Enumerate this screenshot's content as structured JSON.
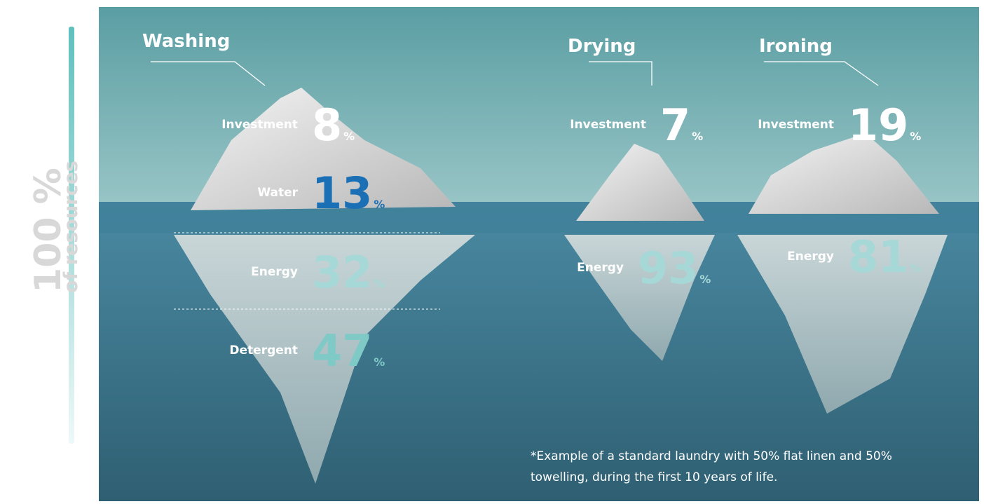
{
  "side_label": {
    "value": "100 %",
    "text": "of resources"
  },
  "groups": [
    {
      "title": "Washing",
      "items": [
        {
          "label": "Investment",
          "value": 8,
          "unit": "%"
        },
        {
          "label": "Water",
          "value": 13,
          "unit": "%"
        },
        {
          "label": "Energy",
          "value": 32,
          "unit": "%"
        },
        {
          "label": "Detergent",
          "value": 47,
          "unit": "%"
        }
      ]
    },
    {
      "title": "Drying",
      "items": [
        {
          "label": "Investment",
          "value": 7,
          "unit": "%"
        },
        {
          "label": "Energy",
          "value": 93,
          "unit": "%"
        }
      ]
    },
    {
      "title": "Ironing",
      "items": [
        {
          "label": "Investment",
          "value": 19,
          "unit": "%"
        },
        {
          "label": "Energy",
          "value": 81,
          "unit": "%"
        }
      ]
    }
  ],
  "footnote": [
    "*Example of a standard laundry with 50% flat linen and 50%",
    "towelling, during the first 10 years of life."
  ]
}
